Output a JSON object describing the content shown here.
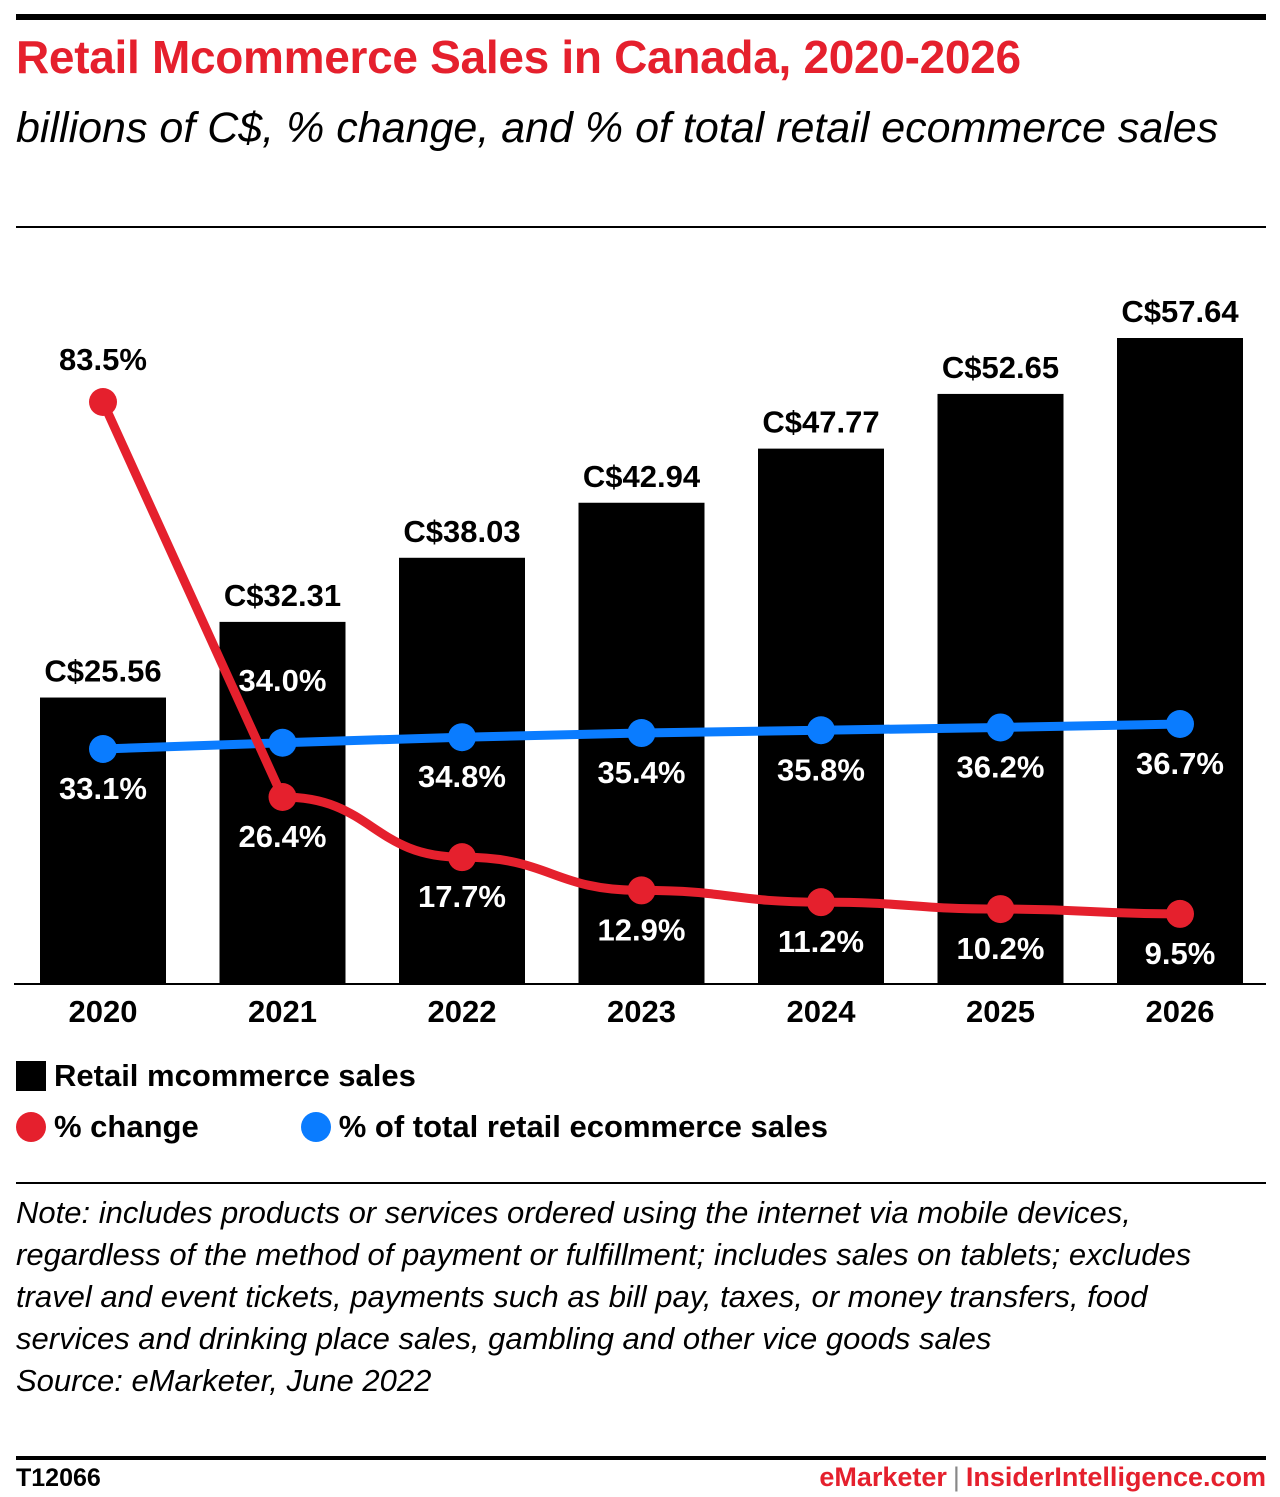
{
  "header": {
    "title": "Retail Mcommerce Sales in Canada, 2020-2026",
    "subtitle": "billions of C$, % change, and % of total retail ecommerce sales"
  },
  "colors": {
    "bar": "#000000",
    "change_line": "#e5202d",
    "share_line": "#0a7cff",
    "title": "#e5202d"
  },
  "chart_data": {
    "type": "bar",
    "categories": [
      "2020",
      "2021",
      "2022",
      "2023",
      "2024",
      "2025",
      "2026"
    ],
    "ylim": [
      0,
      60
    ],
    "series": [
      {
        "name": "Retail mcommerce sales",
        "type": "bar",
        "values": [
          25.56,
          32.31,
          38.03,
          42.94,
          47.77,
          52.65,
          57.64
        ],
        "labels": [
          "C$25.56",
          "C$32.31",
          "C$38.03",
          "C$42.94",
          "C$47.77",
          "C$52.65",
          "C$57.64"
        ]
      },
      {
        "name": "% change",
        "type": "line",
        "values": [
          83.5,
          26.4,
          17.7,
          12.9,
          11.2,
          10.2,
          9.5
        ],
        "labels": [
          "83.5%",
          "26.4%",
          "17.7%",
          "12.9%",
          "11.2%",
          "10.2%",
          "9.5%"
        ]
      },
      {
        "name": "% of total retail ecommerce sales",
        "type": "line",
        "values": [
          33.1,
          34.0,
          34.8,
          35.4,
          35.8,
          36.2,
          36.7
        ],
        "labels": [
          "33.1%",
          "34.0%",
          "34.8%",
          "35.4%",
          "35.8%",
          "36.2%",
          "36.7%"
        ]
      }
    ],
    "legend": {
      "bar": "Retail mcommerce sales",
      "change": "% change",
      "share": "% of total retail ecommerce sales"
    },
    "grid": false
  },
  "notes": {
    "note": "Note: includes products or services ordered using the internet via mobile devices, regardless of the method of payment or fulfillment; includes sales on tablets; excludes travel and event tickets, payments such as bill pay, taxes, or money transfers, food services and drinking place sales, gambling and other vice goods sales",
    "source": "Source: eMarketer, June 2022"
  },
  "footer": {
    "chart_id": "T12066",
    "brand": "eMarketer",
    "separator": "|",
    "site": "InsiderIntelligence.com"
  }
}
